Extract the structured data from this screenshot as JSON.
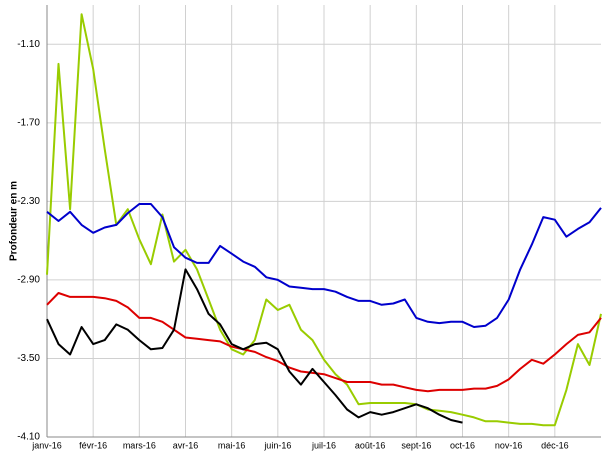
{
  "chart_data": {
    "type": "line",
    "ylabel": "Profondeur en m",
    "x": [
      0,
      0.25,
      0.5,
      0.75,
      1,
      1.25,
      1.5,
      1.75,
      2,
      2.25,
      2.5,
      2.75,
      3,
      3.25,
      3.5,
      3.75,
      4,
      4.25,
      4.5,
      4.75,
      5,
      5.25,
      5.5,
      5.75,
      6,
      6.25,
      6.5,
      6.75,
      7,
      7.25,
      7.5,
      7.75,
      8,
      8.25,
      8.5,
      8.75,
      9,
      9.25,
      9.5,
      9.75,
      10,
      10.25,
      10.5,
      10.75,
      11,
      11.25,
      11.5,
      11.75,
      12
    ],
    "xlim": [
      0,
      12
    ],
    "xticks": [
      {
        "value": 0,
        "label": "janv-16"
      },
      {
        "value": 1,
        "label": "févr-16"
      },
      {
        "value": 2,
        "label": "mars-16"
      },
      {
        "value": 3,
        "label": "avr-16"
      },
      {
        "value": 4,
        "label": "mai-16"
      },
      {
        "value": 5,
        "label": "juin-16"
      },
      {
        "value": 6,
        "label": "juil-16"
      },
      {
        "value": 7,
        "label": "août-16"
      },
      {
        "value": 8,
        "label": "sept-16"
      },
      {
        "value": 9,
        "label": "oct-16"
      },
      {
        "value": 10,
        "label": "nov-16"
      },
      {
        "value": 11,
        "label": "déc-16"
      }
    ],
    "ylim": [
      -4.1,
      -0.8
    ],
    "yticks": [
      {
        "value": -4.1,
        "label": "-4.10"
      },
      {
        "value": -3.5,
        "label": "-3.50"
      },
      {
        "value": -2.9,
        "label": "-2.90"
      },
      {
        "value": -2.3,
        "label": "-2.30"
      },
      {
        "value": -1.7,
        "label": "-1.70"
      },
      {
        "value": -1.1,
        "label": "-1.10"
      }
    ],
    "grid": true,
    "series": [
      {
        "color": "#99cc00",
        "values": [
          -2.86,
          -1.25,
          -2.36,
          -0.87,
          -1.29,
          -1.9,
          -2.48,
          -2.36,
          -2.59,
          -2.78,
          -2.4,
          -2.76,
          -2.67,
          -2.82,
          -3.05,
          -3.28,
          -3.43,
          -3.47,
          -3.36,
          -3.05,
          -3.13,
          -3.09,
          -3.28,
          -3.36,
          -3.51,
          -3.62,
          -3.7,
          -3.85,
          -3.84,
          -3.84,
          -3.84,
          -3.84,
          -3.85,
          -3.89,
          -3.9,
          -3.91,
          -3.93,
          -3.95,
          -3.98,
          -3.98,
          -3.99,
          -4.0,
          -4.0,
          -4.01,
          -4.01,
          -3.74,
          -3.39,
          -3.55,
          -3.16
        ]
      },
      {
        "color": "#0000cc",
        "values": [
          -2.38,
          -2.45,
          -2.38,
          -2.48,
          -2.54,
          -2.5,
          -2.48,
          -2.39,
          -2.32,
          -2.32,
          -2.42,
          -2.65,
          -2.73,
          -2.77,
          -2.77,
          -2.64,
          -2.7,
          -2.76,
          -2.8,
          -2.88,
          -2.9,
          -2.95,
          -2.96,
          -2.97,
          -2.97,
          -2.99,
          -3.03,
          -3.06,
          -3.06,
          -3.09,
          -3.08,
          -3.05,
          -3.19,
          -3.22,
          -3.23,
          -3.22,
          -3.22,
          -3.26,
          -3.25,
          -3.19,
          -3.05,
          -2.82,
          -2.63,
          -2.42,
          -2.44,
          -2.57,
          -2.51,
          -2.46,
          -2.35
        ]
      },
      {
        "color": "#dd0000",
        "values": [
          -3.09,
          -3.0,
          -3.03,
          -3.03,
          -3.03,
          -3.04,
          -3.06,
          -3.11,
          -3.19,
          -3.19,
          -3.22,
          -3.28,
          -3.34,
          -3.35,
          -3.36,
          -3.37,
          -3.41,
          -3.43,
          -3.45,
          -3.49,
          -3.52,
          -3.57,
          -3.6,
          -3.61,
          -3.62,
          -3.65,
          -3.68,
          -3.68,
          -3.68,
          -3.7,
          -3.7,
          -3.72,
          -3.74,
          -3.75,
          -3.74,
          -3.74,
          -3.74,
          -3.73,
          -3.73,
          -3.71,
          -3.66,
          -3.58,
          -3.51,
          -3.54,
          -3.47,
          -3.39,
          -3.32,
          -3.3,
          -3.19
        ]
      },
      {
        "color": "#000000",
        "values": [
          -3.2,
          -3.39,
          -3.47,
          -3.26,
          -3.39,
          -3.36,
          -3.24,
          -3.28,
          -3.36,
          -3.43,
          -3.42,
          -3.28,
          -2.82,
          -2.97,
          -3.16,
          -3.24,
          -3.39,
          -3.43,
          -3.39,
          -3.38,
          -3.43,
          -3.6,
          -3.7,
          -3.58,
          -3.68,
          -3.78,
          -3.89,
          -3.95,
          -3.91,
          -3.93,
          -3.91,
          -3.88,
          -3.85,
          -3.88,
          -3.93,
          -3.97,
          -3.99,
          null,
          null,
          null,
          null,
          null,
          null,
          null,
          null,
          null,
          null,
          null,
          null
        ]
      }
    ]
  }
}
